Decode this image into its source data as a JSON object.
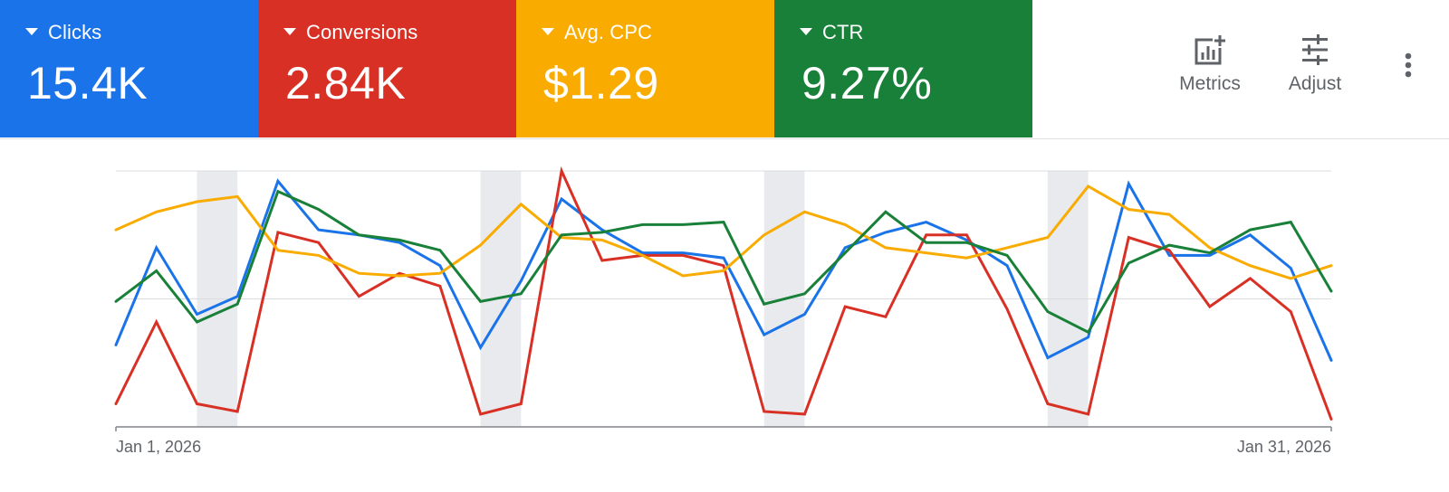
{
  "metrics": [
    {
      "label": "Clicks",
      "value": "15.4K",
      "color": "#1a73e8"
    },
    {
      "label": "Conversions",
      "value": "2.84K",
      "color": "#d93025"
    },
    {
      "label": "Avg. CPC",
      "value": "$1.29",
      "color": "#f9ab00"
    },
    {
      "label": "CTR",
      "value": "9.27%",
      "color": "#188038"
    }
  ],
  "toolbar": {
    "metrics_label": "Metrics",
    "adjust_label": "Adjust",
    "metrics_icon": "add-chart-icon",
    "adjust_icon": "tune-icon",
    "more_icon": "more-vert-icon"
  },
  "chart_data": {
    "type": "line",
    "x": [
      "2026-01-01",
      "2026-01-02",
      "2026-01-03",
      "2026-01-04",
      "2026-01-05",
      "2026-01-06",
      "2026-01-07",
      "2026-01-08",
      "2026-01-09",
      "2026-01-10",
      "2026-01-11",
      "2026-01-12",
      "2026-01-13",
      "2026-01-14",
      "2026-01-15",
      "2026-01-16",
      "2026-01-17",
      "2026-01-18",
      "2026-01-19",
      "2026-01-20",
      "2026-01-21",
      "2026-01-22",
      "2026-01-23",
      "2026-01-24",
      "2026-01-25",
      "2026-01-26",
      "2026-01-27",
      "2026-01-28",
      "2026-01-29",
      "2026-01-30",
      "2026-01-31"
    ],
    "x_tick_labels": [
      "Jan 1, 2026",
      "Jan 31, 2026"
    ],
    "y_gridlines": [
      0,
      0.5,
      1
    ],
    "ylim": [
      0,
      1
    ],
    "y_scale": "normalized per series",
    "weekend_shading": [
      [
        "2026-01-03",
        "2026-01-04"
      ],
      [
        "2026-01-10",
        "2026-01-11"
      ],
      [
        "2026-01-17",
        "2026-01-18"
      ],
      [
        "2026-01-24",
        "2026-01-25"
      ]
    ],
    "weekend_color": "#e8eaed",
    "series": [
      {
        "metric": "Clicks",
        "color": "#1a73e8",
        "values": [
          0.32,
          0.7,
          0.44,
          0.51,
          0.96,
          0.77,
          0.75,
          0.72,
          0.63,
          0.31,
          0.57,
          0.89,
          0.77,
          0.68,
          0.68,
          0.66,
          0.36,
          0.44,
          0.7,
          0.76,
          0.8,
          0.73,
          0.63,
          0.27,
          0.35,
          0.95,
          0.67,
          0.67,
          0.75,
          0.62,
          0.26
        ]
      },
      {
        "metric": "Conversions",
        "color": "#d93025",
        "values": [
          0.09,
          0.41,
          0.09,
          0.06,
          0.76,
          0.72,
          0.51,
          0.6,
          0.55,
          0.05,
          0.09,
          1.0,
          0.65,
          0.67,
          0.67,
          0.63,
          0.06,
          0.05,
          0.47,
          0.43,
          0.75,
          0.75,
          0.46,
          0.09,
          0.05,
          0.74,
          0.69,
          0.47,
          0.58,
          0.45,
          0.03
        ]
      },
      {
        "metric": "Avg. CPC",
        "color": "#f9ab00",
        "values": [
          0.77,
          0.84,
          0.88,
          0.9,
          0.69,
          0.67,
          0.6,
          0.59,
          0.6,
          0.71,
          0.87,
          0.74,
          0.73,
          0.67,
          0.59,
          0.61,
          0.75,
          0.84,
          0.79,
          0.7,
          0.68,
          0.66,
          0.7,
          0.74,
          0.94,
          0.85,
          0.83,
          0.7,
          0.63,
          0.58,
          0.63
        ]
      },
      {
        "metric": "CTR",
        "color": "#188038",
        "values": [
          0.49,
          0.61,
          0.41,
          0.48,
          0.92,
          0.85,
          0.75,
          0.73,
          0.69,
          0.49,
          0.52,
          0.75,
          0.76,
          0.79,
          0.79,
          0.8,
          0.48,
          0.52,
          0.68,
          0.84,
          0.72,
          0.72,
          0.67,
          0.45,
          0.37,
          0.64,
          0.71,
          0.68,
          0.77,
          0.8,
          0.53
        ]
      }
    ]
  }
}
